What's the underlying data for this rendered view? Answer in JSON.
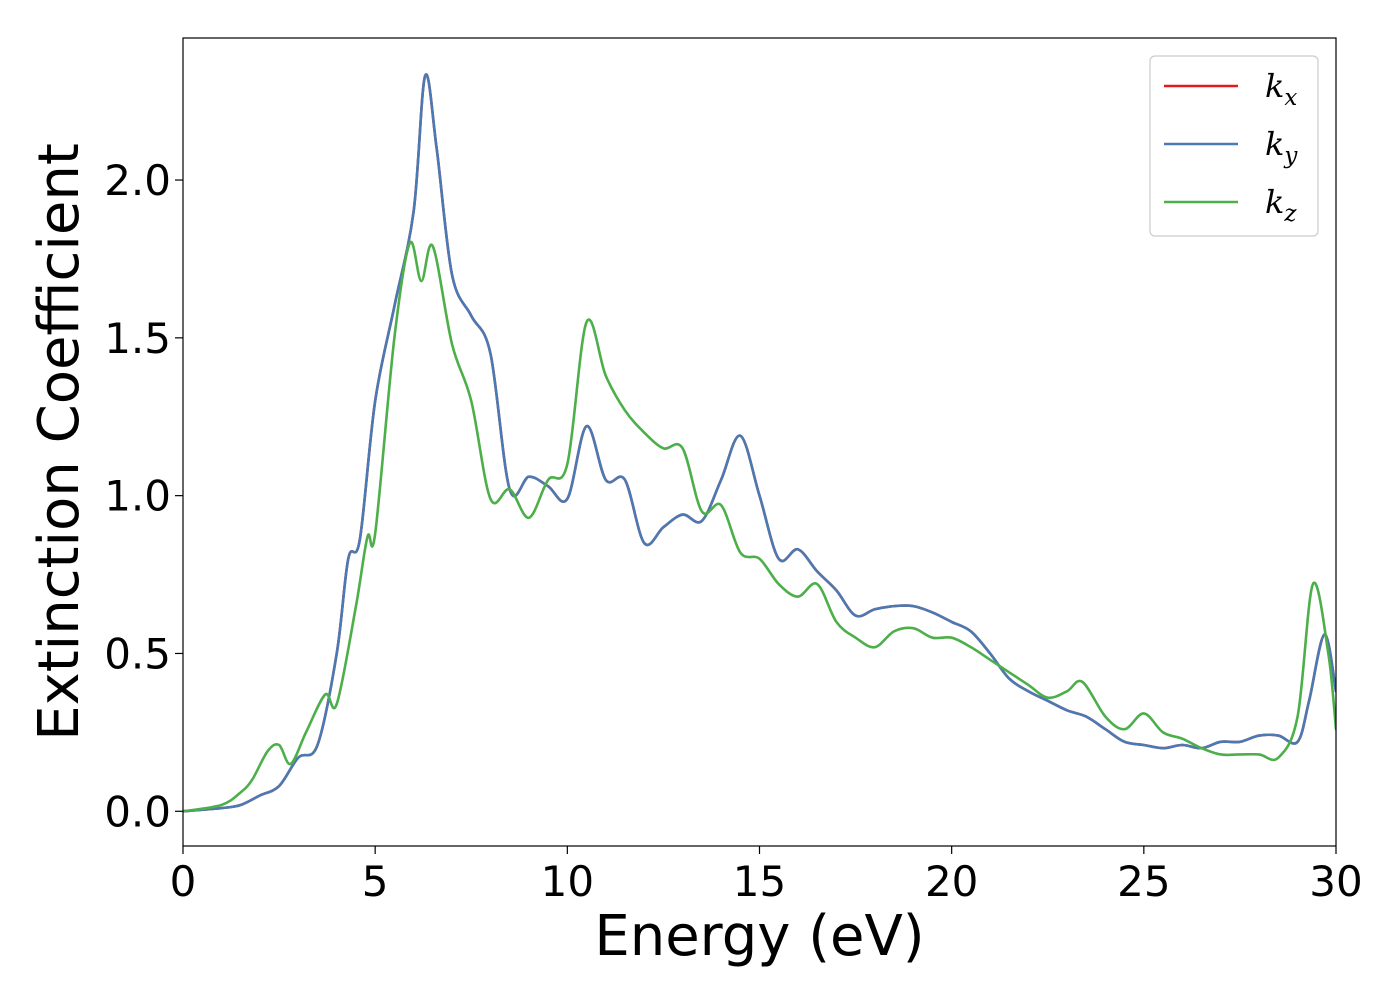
{
  "chart_data": {
    "type": "line",
    "title": "",
    "xlabel": "Energy (eV)",
    "ylabel": "Extinction Coefficient",
    "xlim": [
      0,
      30
    ],
    "ylim": [
      -0.11,
      2.45
    ],
    "xticks": [
      0,
      5,
      10,
      15,
      20,
      25,
      30
    ],
    "xtick_labels": [
      "0",
      "5",
      "10",
      "15",
      "20",
      "25",
      "30"
    ],
    "yticks": [
      0.0,
      0.5,
      1.0,
      1.5,
      2.0
    ],
    "ytick_labels": [
      "0.0",
      "0.5",
      "1.0",
      "1.5",
      "2.0"
    ],
    "grid": false,
    "legend_position": "top-right",
    "series": [
      {
        "name": "k_x",
        "label_main": "k",
        "label_sub": "x",
        "color": "#e41a1c",
        "x": [
          0,
          1,
          1.5,
          2,
          2.5,
          3,
          3.5,
          4,
          4.3,
          4.6,
          5,
          5.5,
          6,
          6.3,
          6.6,
          7,
          7.5,
          8,
          8.5,
          9,
          9.5,
          10,
          10.5,
          11,
          11.5,
          12,
          12.5,
          13,
          13.5,
          14,
          14.5,
          15,
          15.5,
          16,
          16.5,
          17,
          17.5,
          18,
          18.5,
          19,
          19.5,
          20,
          20.5,
          21,
          21.5,
          22,
          22.5,
          23,
          23.5,
          24,
          24.5,
          25,
          25.5,
          26,
          26.5,
          27,
          27.5,
          28,
          28.5,
          29,
          29.3,
          29.7,
          30
        ],
        "y": [
          0,
          0.01,
          0.02,
          0.05,
          0.08,
          0.17,
          0.21,
          0.5,
          0.8,
          0.86,
          1.3,
          1.6,
          1.9,
          2.33,
          2.1,
          1.7,
          1.57,
          1.45,
          1.02,
          1.06,
          1.03,
          0.99,
          1.22,
          1.05,
          1.05,
          0.85,
          0.9,
          0.94,
          0.92,
          1.05,
          1.19,
          1.0,
          0.8,
          0.83,
          0.76,
          0.7,
          0.62,
          0.64,
          0.65,
          0.65,
          0.63,
          0.6,
          0.57,
          0.5,
          0.42,
          0.38,
          0.35,
          0.32,
          0.3,
          0.26,
          0.22,
          0.21,
          0.2,
          0.21,
          0.2,
          0.22,
          0.22,
          0.24,
          0.24,
          0.22,
          0.35,
          0.56,
          0.38
        ]
      },
      {
        "name": "k_y",
        "label_main": "k",
        "label_sub": "y",
        "color": "#4a7ab4",
        "x": [
          0,
          1,
          1.5,
          2,
          2.5,
          3,
          3.5,
          4,
          4.3,
          4.6,
          5,
          5.5,
          6,
          6.3,
          6.6,
          7,
          7.5,
          8,
          8.5,
          9,
          9.5,
          10,
          10.5,
          11,
          11.5,
          12,
          12.5,
          13,
          13.5,
          14,
          14.5,
          15,
          15.5,
          16,
          16.5,
          17,
          17.5,
          18,
          18.5,
          19,
          19.5,
          20,
          20.5,
          21,
          21.5,
          22,
          22.5,
          23,
          23.5,
          24,
          24.5,
          25,
          25.5,
          26,
          26.5,
          27,
          27.5,
          28,
          28.5,
          29,
          29.3,
          29.7,
          30
        ],
        "y": [
          0,
          0.01,
          0.02,
          0.05,
          0.08,
          0.17,
          0.21,
          0.5,
          0.8,
          0.86,
          1.3,
          1.6,
          1.9,
          2.33,
          2.1,
          1.7,
          1.57,
          1.45,
          1.02,
          1.06,
          1.03,
          0.99,
          1.22,
          1.05,
          1.05,
          0.85,
          0.9,
          0.94,
          0.92,
          1.05,
          1.19,
          1.0,
          0.8,
          0.83,
          0.76,
          0.7,
          0.62,
          0.64,
          0.65,
          0.65,
          0.63,
          0.6,
          0.57,
          0.5,
          0.42,
          0.38,
          0.35,
          0.32,
          0.3,
          0.26,
          0.22,
          0.21,
          0.2,
          0.21,
          0.2,
          0.22,
          0.22,
          0.24,
          0.24,
          0.22,
          0.35,
          0.56,
          0.38
        ]
      },
      {
        "name": "k_z",
        "label_main": "k",
        "label_sub": "z",
        "color": "#4daf4a",
        "x": [
          0,
          1,
          1.5,
          1.8,
          2.2,
          2.5,
          2.8,
          3.2,
          3.7,
          4,
          4.5,
          4.8,
          5,
          5.5,
          5.9,
          6.2,
          6.5,
          7,
          7.5,
          8,
          8.5,
          9,
          9.5,
          10,
          10.5,
          11,
          11.5,
          12,
          12.5,
          13,
          13.5,
          14,
          14.5,
          15,
          15.5,
          16,
          16.5,
          17,
          17.5,
          18,
          18.5,
          19,
          19.5,
          20,
          20.5,
          21,
          21.5,
          22,
          22.5,
          23,
          23.4,
          24,
          24.5,
          25,
          25.5,
          26,
          26.5,
          27,
          27.5,
          28,
          28.5,
          29,
          29.4,
          29.8,
          30
        ],
        "y": [
          0,
          0.02,
          0.06,
          0.1,
          0.19,
          0.21,
          0.15,
          0.25,
          0.37,
          0.34,
          0.65,
          0.87,
          0.88,
          1.5,
          1.8,
          1.68,
          1.79,
          1.48,
          1.3,
          0.99,
          1.02,
          0.93,
          1.05,
          1.1,
          1.55,
          1.38,
          1.27,
          1.2,
          1.15,
          1.15,
          0.95,
          0.97,
          0.82,
          0.8,
          0.72,
          0.68,
          0.72,
          0.6,
          0.55,
          0.52,
          0.57,
          0.58,
          0.55,
          0.55,
          0.52,
          0.48,
          0.44,
          0.4,
          0.36,
          0.38,
          0.41,
          0.3,
          0.26,
          0.31,
          0.25,
          0.23,
          0.2,
          0.18,
          0.18,
          0.18,
          0.17,
          0.3,
          0.72,
          0.5,
          0.26
        ]
      }
    ]
  }
}
